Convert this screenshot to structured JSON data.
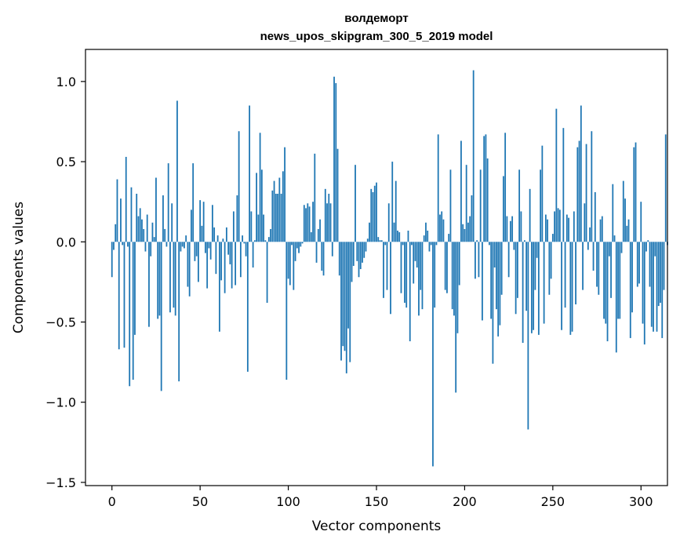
{
  "chart_data": {
    "type": "bar",
    "title_line1": "волдеморт",
    "title_line2": "news_upos_skipgram_300_5_2019 model",
    "xlabel": "Vector components",
    "ylabel": "Components values",
    "xlim": [
      -15,
      315
    ],
    "ylim": [
      -1.52,
      1.2
    ],
    "xticks": [
      0,
      50,
      100,
      150,
      200,
      250,
      300
    ],
    "xtick_labels": [
      "0",
      "50",
      "100",
      "150",
      "200",
      "250",
      "300"
    ],
    "yticks": [
      -1.5,
      -1.0,
      -0.5,
      0.0,
      0.5,
      1.0
    ],
    "ytick_labels": [
      "−1.5",
      "−1.0",
      "−0.5",
      "0.0",
      "0.5",
      "1.0"
    ],
    "grid": false,
    "bar_color": "#1f77b4",
    "values": [
      -0.22,
      -0.05,
      0.11,
      0.39,
      -0.67,
      0.27,
      -0.02,
      -0.66,
      0.53,
      -0.03,
      -0.9,
      0.34,
      -0.86,
      -0.58,
      0.3,
      0.16,
      0.21,
      0.14,
      0.08,
      -0.06,
      0.17,
      -0.53,
      -0.09,
      0.12,
      0.03,
      0.4,
      -0.48,
      -0.46,
      -0.93,
      0.29,
      0.08,
      -0.03,
      0.49,
      -0.44,
      0.24,
      -0.41,
      -0.46,
      0.88,
      -0.87,
      -0.06,
      -0.03,
      -0.04,
      0.04,
      -0.28,
      -0.34,
      0.2,
      0.49,
      -0.12,
      -0.09,
      -0.25,
      0.26,
      0.1,
      0.25,
      -0.07,
      -0.29,
      -0.04,
      -0.11,
      0.23,
      0.09,
      -0.2,
      0.04,
      -0.56,
      -0.24,
      0.02,
      -0.32,
      0.09,
      -0.08,
      -0.14,
      -0.29,
      0.19,
      -0.27,
      0.29,
      0.69,
      -0.22,
      0.04,
      -0.01,
      -0.09,
      -0.81,
      0.85,
      0.19,
      -0.16,
      0.01,
      0.43,
      0.17,
      0.68,
      0.45,
      0.17,
      0.01,
      -0.38,
      0.03,
      0.08,
      0.32,
      0.38,
      0.3,
      0.3,
      0.4,
      0.3,
      0.44,
      0.59,
      -0.86,
      -0.23,
      -0.27,
      -0.02,
      -0.3,
      -0.12,
      -0.04,
      -0.07,
      -0.03,
      -0.01,
      0.23,
      0.21,
      0.24,
      0.22,
      0.06,
      0.25,
      0.55,
      -0.13,
      0.08,
      0.14,
      -0.18,
      -0.21,
      0.33,
      0.24,
      0.3,
      0.24,
      -0.09,
      1.03,
      0.99,
      0.58,
      -0.21,
      -0.74,
      -0.65,
      -0.68,
      -0.82,
      -0.54,
      -0.75,
      -0.25,
      -0.15,
      0.48,
      -0.12,
      -0.22,
      -0.17,
      -0.13,
      -0.1,
      -0.06,
      0.02,
      0.12,
      0.33,
      0.31,
      0.35,
      0.37,
      0.03,
      0.01,
      0.01,
      -0.35,
      -0.02,
      -0.3,
      0.24,
      -0.45,
      0.5,
      0.12,
      0.38,
      0.07,
      0.06,
      -0.32,
      -0.02,
      -0.38,
      -0.41,
      0.07,
      -0.62,
      -0.02,
      -0.26,
      -0.12,
      -0.16,
      -0.46,
      -0.3,
      -0.42,
      0.04,
      0.12,
      0.07,
      -0.06,
      -0.02,
      -1.4,
      -0.41,
      -0.02,
      0.67,
      0.17,
      0.19,
      0.14,
      -0.3,
      -0.32,
      0.05,
      0.45,
      -0.42,
      -0.46,
      -0.94,
      -0.57,
      -0.27,
      0.63,
      0.11,
      0.08,
      0.48,
      0.12,
      0.16,
      0.29,
      1.07,
      -0.23,
      0.01,
      -0.22,
      0.45,
      -0.49,
      0.66,
      0.67,
      0.52,
      -0.02,
      -0.48,
      -0.76,
      -0.16,
      -0.42,
      -0.59,
      -0.52,
      -0.33,
      0.41,
      0.68,
      0.16,
      -0.22,
      0.13,
      0.16,
      -0.05,
      -0.45,
      -0.35,
      0.45,
      0.19,
      -0.63,
      0.01,
      -0.43,
      -1.17,
      0.33,
      -0.57,
      -0.55,
      -0.3,
      -0.1,
      -0.58,
      0.45,
      0.6,
      -0.51,
      0.17,
      0.14,
      -0.33,
      -0.23,
      0.05,
      0.19,
      0.83,
      0.21,
      0.2,
      -0.55,
      0.71,
      -0.41,
      0.17,
      0.15,
      -0.58,
      -0.56,
      0.19,
      -0.39,
      0.59,
      0.63,
      0.85,
      -0.3,
      0.24,
      0.61,
      -0.05,
      0.09,
      0.69,
      -0.18,
      0.31,
      -0.28,
      -0.33,
      0.14,
      0.16,
      -0.48,
      -0.51,
      -0.62,
      -0.09,
      -0.35,
      0.36,
      0.04,
      -0.69,
      -0.48,
      -0.48,
      -0.07,
      0.38,
      0.27,
      0.1,
      0.14,
      -0.6,
      -0.44,
      0.59,
      0.62,
      -0.28,
      -0.26,
      0.25,
      -0.51,
      -0.64,
      -0.06,
      0.01,
      -0.28,
      -0.53,
      -0.56,
      -0.09,
      -0.56,
      -0.4,
      -0.38,
      -0.6,
      -0.3,
      0.67,
      -0.02
    ]
  }
}
